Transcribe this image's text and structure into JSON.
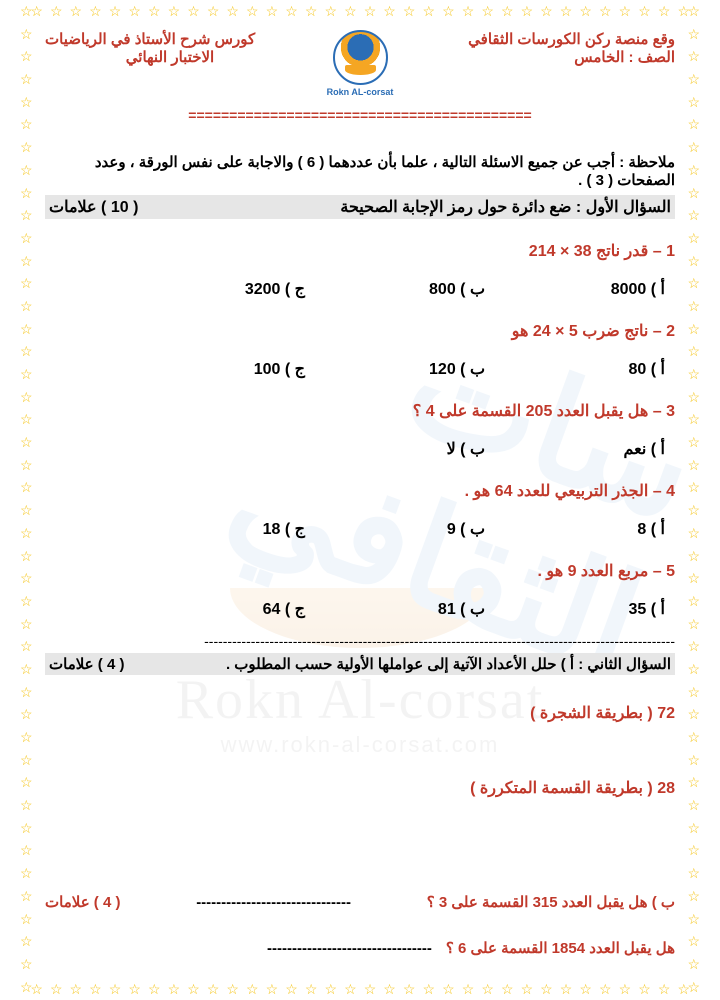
{
  "header": {
    "site": "وقع منصة ركن الكورسات الثقافي",
    "grade": "الصف : الخامس",
    "course": "كورس شرح  الأستاذ  في الرياضيات",
    "exam": "الاختبار النهائي",
    "logo_caption": "Rokn AL-corsat"
  },
  "note": "ملاحظة : أجب عن جميع الاسئلة التالية ، علما بأن عددهما ( 6 ) والاجابة على نفس الورقة ، وعدد الصفحات (  3 ) .",
  "q1": {
    "title": "السؤال الأول : ضع دائرة حول رمز الإجابة الصحيحة",
    "marks": "( 10 ) علامات"
  },
  "mcq": [
    {
      "prompt": "1 – قدر ناتج   38 × 214",
      "a": "أ ) 8000",
      "b": "ب ) 800",
      "c": "ج ) 3200"
    },
    {
      "prompt": "2 – ناتج ضرب   5 × 24  هو",
      "a": "أ ) 80",
      "b": "ب ) 120",
      "c": "ج ) 100"
    },
    {
      "prompt": "3 – هل يقبل العدد 205 القسمة على 4 ؟",
      "a": "أ ) نعم",
      "b": "ب ) لا",
      "c": ""
    },
    {
      "prompt": "4 – الجذر التربيعي للعدد 64 هو .",
      "a": "أ ) 8",
      "b": "ب ) 9",
      "c": "ج ) 18"
    },
    {
      "prompt": "5 – مربع العدد 9 هو .",
      "a": "أ ) 35",
      "b": "ب ) 81",
      "c": "ج ) 64"
    }
  ],
  "q2": {
    "title": "السؤال الثاني : أ ) حلل الأعداد الآتية إلى عواملها الأولية حسب المطلوب .",
    "marks": "( 4 ) علامات"
  },
  "sub": {
    "a": "72 (  بطريقة الشجرة )",
    "b": "28 ( بطريقة القسمة المتكررة )"
  },
  "q2b": {
    "text": "ب ) هل يقبل العدد 315 القسمة على 3 ؟",
    "dashes": "-------------------------------",
    "marks": "( 4 ) علامات"
  },
  "q2c": {
    "text": "هل يقبل العدد  1854 القسمة على 6 ؟",
    "dashes": "---------------------------------"
  },
  "dashes_long": "-----------------------------------------------------------------------------------------------------",
  "eqline": "==========================================",
  "watermark": {
    "brand": "Rokn Al-corsat",
    "url": "www.rokn-al-corsat.com"
  }
}
